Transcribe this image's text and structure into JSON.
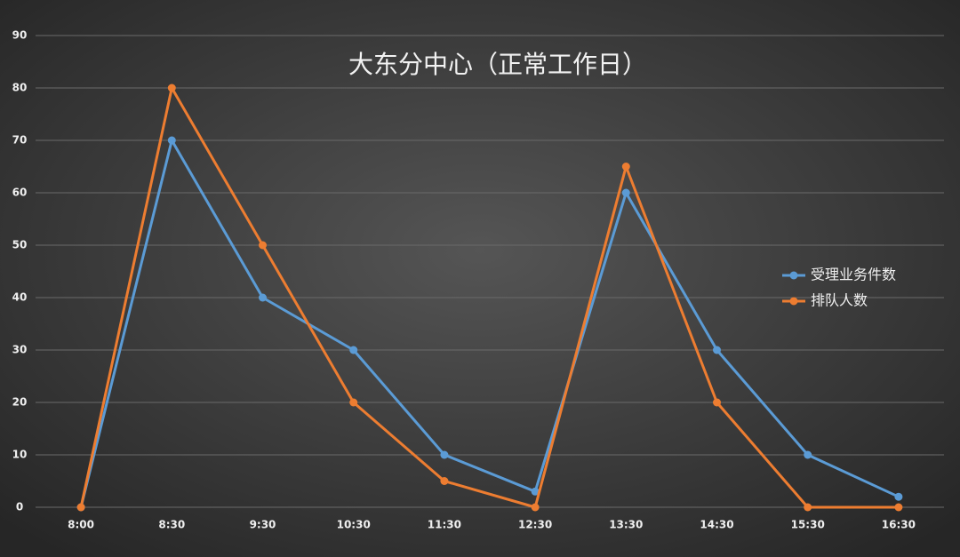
{
  "chart_data": {
    "type": "line",
    "title": "大东分中心（正常工作日）",
    "categories": [
      "8:00",
      "8:30",
      "9:30",
      "10:30",
      "11:30",
      "12:30",
      "13:30",
      "14:30",
      "15:30",
      "16:30"
    ],
    "series": [
      {
        "name": "受理业务件数",
        "color": "#5b9bd5",
        "values": [
          0,
          70,
          40,
          30,
          10,
          3,
          60,
          30,
          10,
          2
        ]
      },
      {
        "name": "排队人数",
        "color": "#ed7d31",
        "values": [
          0,
          80,
          50,
          20,
          5,
          0,
          65,
          20,
          0,
          0
        ]
      }
    ],
    "ylim": [
      0,
      90
    ],
    "yticks": [
      0,
      10,
      20,
      30,
      40,
      50,
      60,
      70,
      80,
      90
    ],
    "grid": true,
    "legend": "right"
  }
}
